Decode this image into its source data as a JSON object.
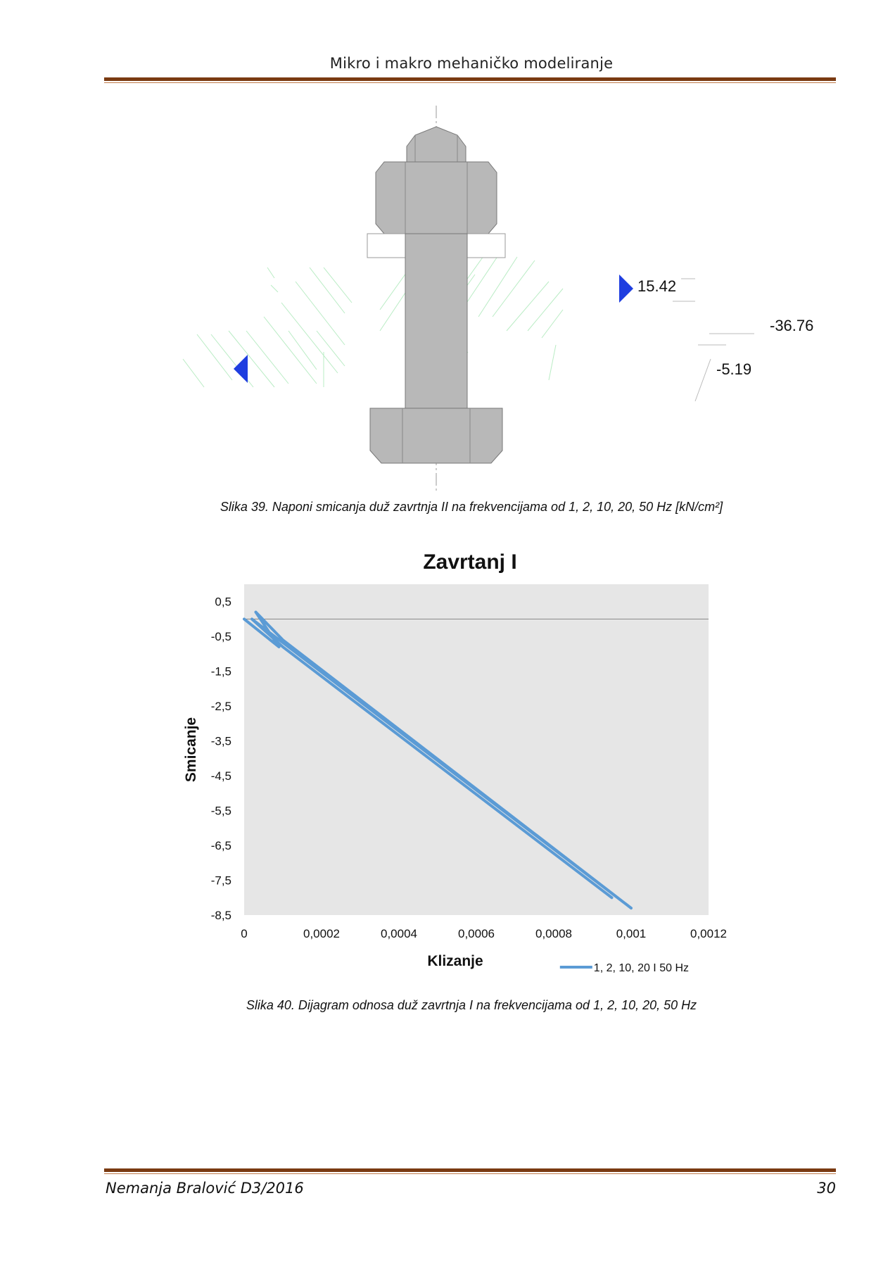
{
  "header": {
    "title": "Mikro i makro mehaničko modeliranje"
  },
  "figure39": {
    "labels": [
      "15.42",
      "-36.76",
      "-5.19"
    ],
    "caption": "Slika 39. Naponi smicanja duž zavrtnja II na frekvencijama od 1, 2, 10, 20, 50 Hz  [kN/cm²]"
  },
  "chart_data": {
    "type": "line",
    "title": "Zavrtanj I",
    "xlabel": "Klizanje",
    "ylabel": "Smicanje",
    "xlim": [
      0,
      0.0012
    ],
    "ylim": [
      -8.5,
      1
    ],
    "x_ticks": [
      "0",
      "0,0002",
      "0,0004",
      "0,0006",
      "0,0008",
      "0,001",
      "0,0012"
    ],
    "y_ticks": [
      "0,5",
      "-0,5",
      "-1,5",
      "-2,5",
      "-3,5",
      "-4,5",
      "-5,5",
      "-6,5",
      "-7,5",
      "-8,5"
    ],
    "y_tick_values": [
      0.5,
      -0.5,
      -1.5,
      -2.5,
      -3.5,
      -4.5,
      -5.5,
      -6.5,
      -7.5,
      -8.5
    ],
    "grid": false,
    "plot_background": "#e6e6e6",
    "legend_position": "bottom-right",
    "series": [
      {
        "name": "1, 2, 10, 20 I 50 Hz",
        "color": "#5b9bd5",
        "x": [
          0,
          9e-05,
          3e-05,
          0.0001,
          0.001,
          2e-05,
          0.0001,
          0.00095
        ],
        "y": [
          0.0,
          -0.8,
          0.2,
          -0.6,
          -8.3,
          0.0,
          -0.8,
          -8.0
        ]
      }
    ]
  },
  "figure40": {
    "caption": "Slika 40.  Dijagram odnosa duž zavrtnja I na frekvencijama od 1, 2, 10, 20, 50 Hz"
  },
  "footer": {
    "author": "Nemanja Bralović D3/2016",
    "page": "30"
  }
}
